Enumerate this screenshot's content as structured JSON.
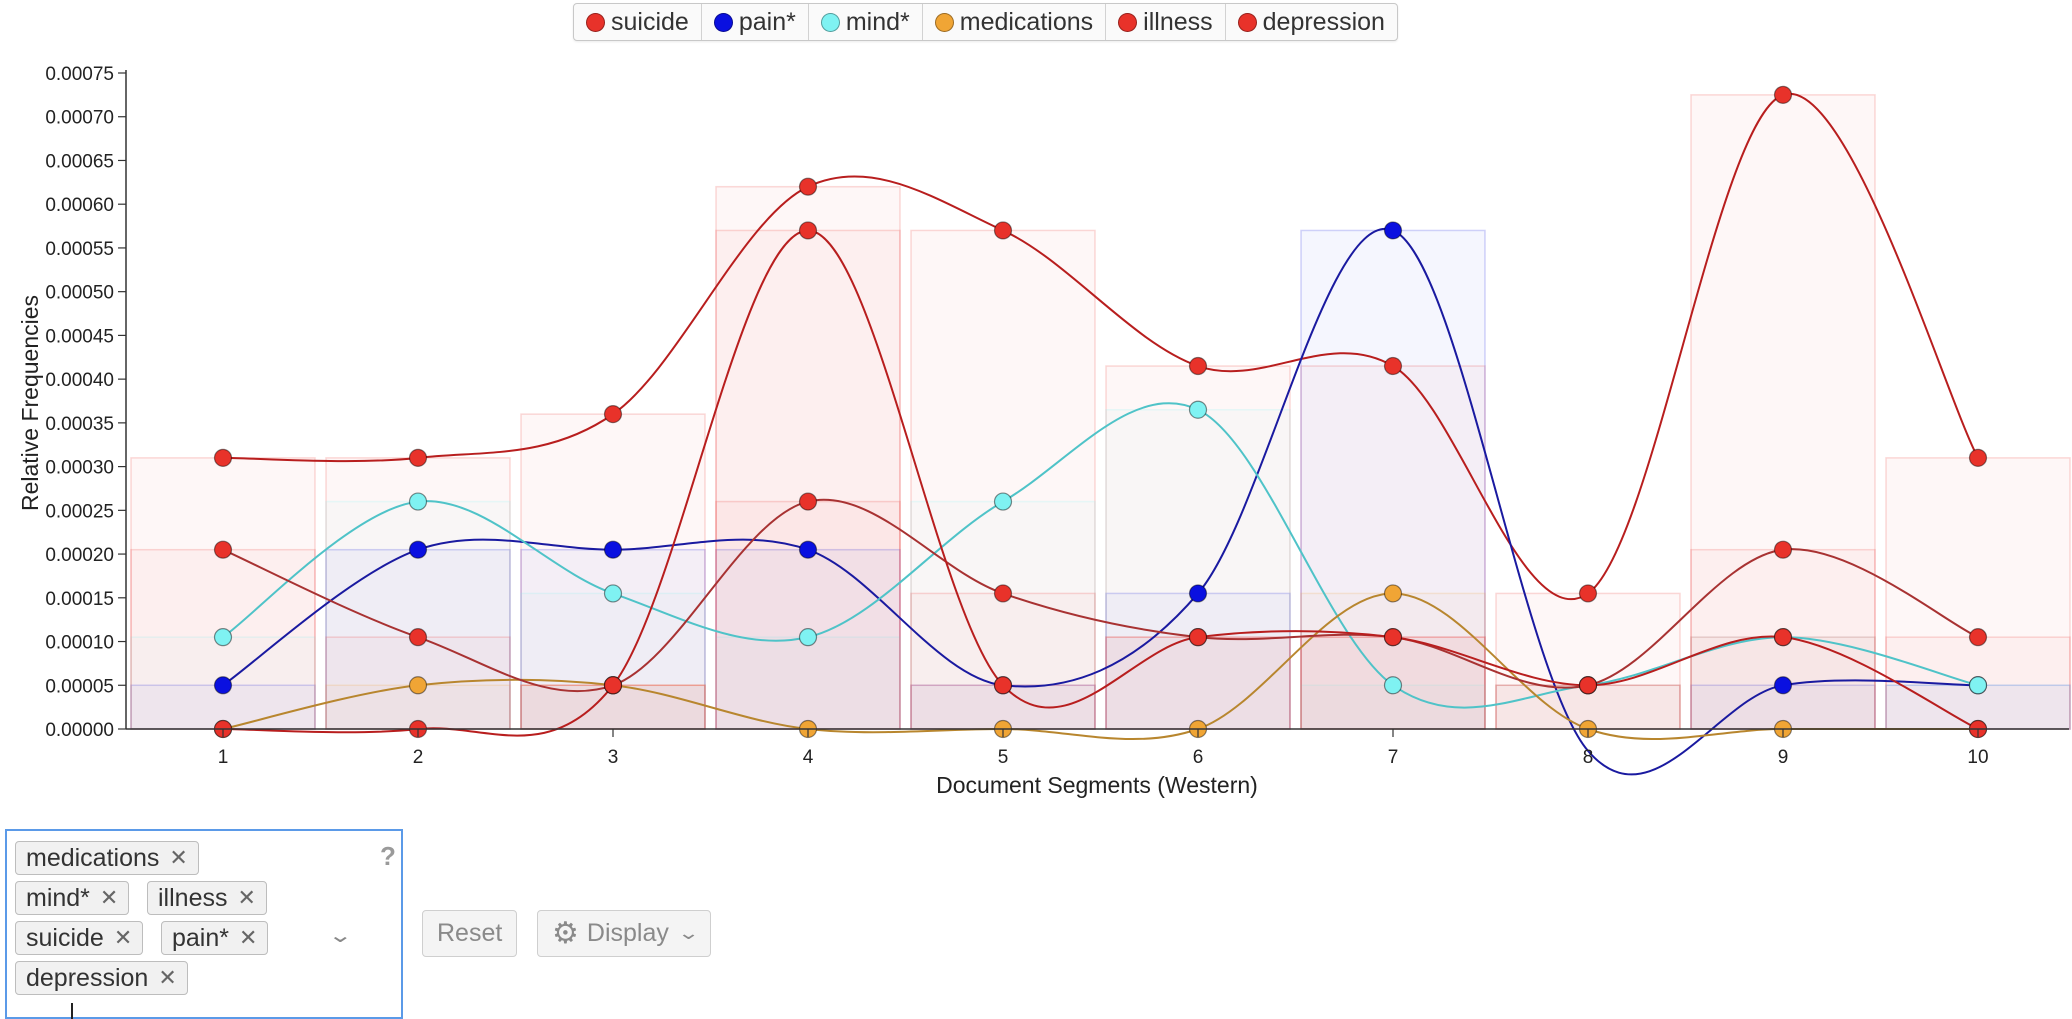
{
  "chart_data": {
    "type": "line",
    "xlabel": "Document Segments (Western)",
    "ylabel": "Relative Frequencies",
    "categories": [
      "1",
      "2",
      "3",
      "4",
      "5",
      "6",
      "7",
      "8",
      "9",
      "10"
    ],
    "ylim": [
      0,
      0.00075
    ],
    "yticks": [
      "0.00000",
      "0.00005",
      "0.00010",
      "0.00015",
      "0.00020",
      "0.00025",
      "0.00030",
      "0.00035",
      "0.00040",
      "0.00045",
      "0.00050",
      "0.00055",
      "0.00060",
      "0.00065",
      "0.00070",
      "0.00075"
    ],
    "series": [
      {
        "name": "suicide",
        "color": "#e8322a",
        "line": "#b81e1e",
        "values": [
          0.00031,
          0.00031,
          0.00036,
          0.00062,
          0.00057,
          0.000415,
          0.000415,
          0.000155,
          0.000725,
          0.00031
        ]
      },
      {
        "name": "pain*",
        "color": "#0a10e0",
        "line": "#1a1aa0",
        "values": [
          5e-05,
          0.000205,
          0.000205,
          0.000205,
          5e-05,
          0.000155,
          0.00057,
          -2.5e-05,
          5e-05,
          5e-05
        ]
      },
      {
        "name": "mind*",
        "color": "#7ff2f2",
        "line": "#4fc3c8",
        "values": [
          0.000105,
          0.00026,
          0.000155,
          0.000105,
          0.00026,
          0.000365,
          5e-05,
          5e-05,
          0.000105,
          5e-05
        ]
      },
      {
        "name": "medications",
        "color": "#f0a535",
        "line": "#b8862e",
        "values": [
          0,
          5e-05,
          5e-05,
          0,
          0,
          0,
          0.000155,
          0,
          0,
          0
        ]
      },
      {
        "name": "illness",
        "color": "#e8322a",
        "line": "#a83232",
        "values": [
          0.000205,
          0.000105,
          5e-05,
          0.00026,
          0.000155,
          0.000105,
          0.000105,
          5e-05,
          0.000205,
          0.000105
        ]
      },
      {
        "name": "depression",
        "color": "#e8322a",
        "line": "#b81e1e",
        "values": [
          0,
          0,
          5e-05,
          0.00057,
          5e-05,
          0.000105,
          0.000105,
          5e-05,
          0.000105,
          0
        ]
      }
    ],
    "grid": false,
    "legend": "top-center"
  },
  "term_box": {
    "chips": [
      "medications",
      "mind*",
      "illness",
      "suicide",
      "pain*",
      "depression"
    ],
    "help_icon": "question-mark-icon"
  },
  "buttons": {
    "reset_label": "Reset",
    "display_label": "Display"
  },
  "icons": {
    "remove": "close-icon",
    "settings": "gear-icon",
    "dropdown": "chevron-down-icon"
  }
}
